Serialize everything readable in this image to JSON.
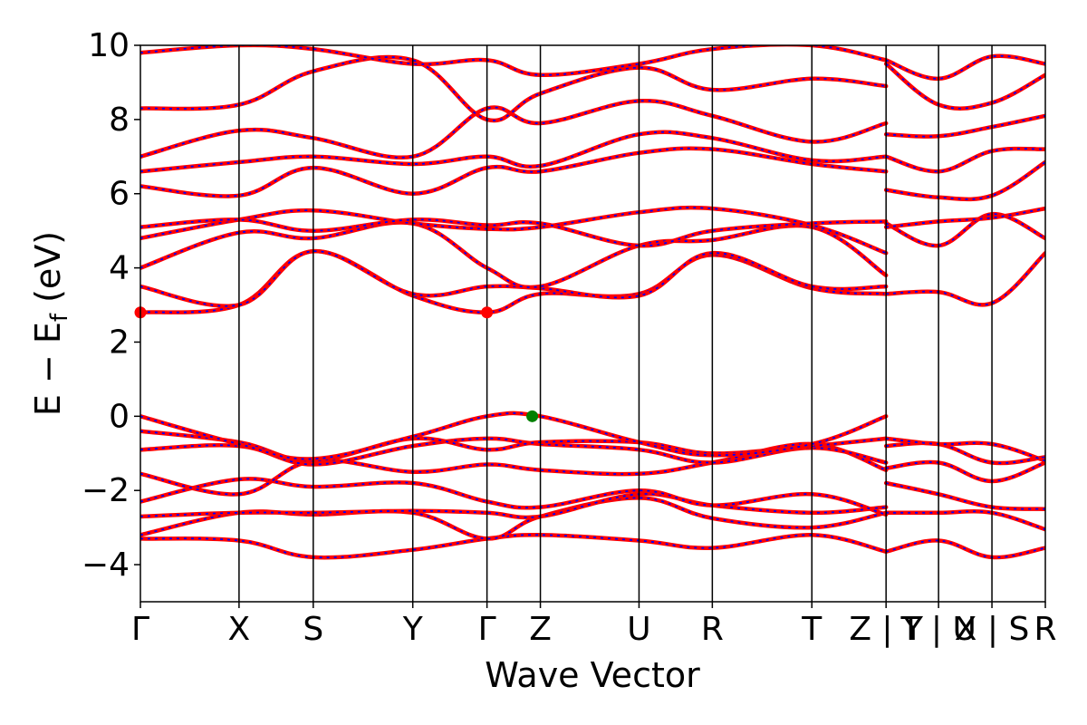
{
  "chart_data": {
    "type": "line",
    "xlabel": "Wave Vector",
    "ylabel_parts": {
      "main": "E  −  E",
      "sub": "f",
      "unit": " (eV)"
    },
    "ylim": [
      -5,
      10
    ],
    "yticks": [
      -4,
      -2,
      0,
      2,
      4,
      6,
      8,
      10
    ],
    "ytick_labels": [
      "−4",
      "−2",
      "0",
      "2",
      "4",
      "6",
      "8",
      "10"
    ],
    "k_range": [
      0,
      1
    ],
    "kpoints": [
      {
        "label": "Γ",
        "k": 0.0
      },
      {
        "label": "X",
        "k": 0.109
      },
      {
        "label": "S",
        "k": 0.191
      },
      {
        "label": "Y",
        "k": 0.301
      },
      {
        "label": "Γ",
        "k": 0.383
      },
      {
        "label": "Z",
        "k": 0.442
      },
      {
        "label": "U",
        "k": 0.551
      },
      {
        "label": "R",
        "k": 0.632
      },
      {
        "label": "T",
        "k": 0.742
      },
      {
        "label": "Z | Y",
        "k": 0.824
      },
      {
        "label": "T | U",
        "k": 0.882
      },
      {
        "label": "X | S",
        "k": 0.941
      },
      {
        "label": "R",
        "k": 1.0
      }
    ],
    "band_colors": {
      "line": "#ff0000",
      "dash": "#0000ff"
    },
    "special_points": [
      {
        "name": "CBM",
        "k": 0.0,
        "E": 2.8,
        "color": "#ff0000"
      },
      {
        "name": "CBM",
        "k": 0.383,
        "E": 2.8,
        "color": "#ff0000"
      },
      {
        "name": "VBM",
        "k": 0.433,
        "E": 0.0,
        "color": "#008000"
      }
    ],
    "bands": [
      {
        "k": [
          0,
          0.109,
          0.191,
          0.301,
          0.383,
          0.442,
          0.551,
          0.632,
          0.742,
          0.824
        ],
        "E": [
          -3.3,
          -3.35,
          -3.8,
          -3.6,
          -3.3,
          -3.2,
          -3.35,
          -3.55,
          -3.2,
          -3.65
        ]
      },
      {
        "k": [
          0,
          0.109,
          0.191,
          0.301,
          0.383,
          0.442,
          0.551,
          0.632,
          0.742,
          0.824
        ],
        "E": [
          -3.2,
          -2.6,
          -2.65,
          -2.6,
          -3.3,
          -2.7,
          -2.2,
          -2.75,
          -3.0,
          -2.6
        ]
      },
      {
        "k": [
          0,
          0.109,
          0.191,
          0.301,
          0.383,
          0.442,
          0.551,
          0.632,
          0.742,
          0.824
        ],
        "E": [
          -2.7,
          -2.6,
          -2.6,
          -2.55,
          -2.6,
          -2.7,
          -2.1,
          -2.4,
          -2.6,
          -2.45
        ]
      },
      {
        "k": [
          0,
          0.109,
          0.191,
          0.301,
          0.383,
          0.442,
          0.551,
          0.632,
          0.742,
          0.824
        ],
        "E": [
          -2.3,
          -1.7,
          -1.9,
          -1.8,
          -2.3,
          -2.45,
          -2.0,
          -2.4,
          -2.1,
          -2.65
        ]
      },
      {
        "k": [
          0,
          0.109,
          0.191,
          0.301,
          0.383,
          0.442,
          0.551,
          0.632,
          0.742,
          0.824
        ],
        "E": [
          -1.55,
          -2.1,
          -1.2,
          -1.5,
          -1.3,
          -1.45,
          -1.55,
          -1.25,
          -0.75,
          -1.45
        ]
      },
      {
        "k": [
          0,
          0.109,
          0.191,
          0.301,
          0.383,
          0.442,
          0.551,
          0.632,
          0.742,
          0.824
        ],
        "E": [
          -0.9,
          -0.8,
          -1.3,
          -0.8,
          -0.6,
          -0.75,
          -0.9,
          -1.25,
          -0.85,
          -1.25
        ]
      },
      {
        "k": [
          0,
          0.109,
          0.191,
          0.301,
          0.383,
          0.442,
          0.551,
          0.632,
          0.742,
          0.824
        ],
        "E": [
          -0.4,
          -0.7,
          -1.2,
          -0.6,
          -0.9,
          -0.7,
          -0.7,
          -1.0,
          -0.8,
          -0.6
        ]
      },
      {
        "k": [
          0,
          0.109,
          0.191,
          0.301,
          0.383,
          0.442,
          0.551,
          0.632,
          0.742,
          0.824
        ],
        "E": [
          0.0,
          -0.75,
          -1.15,
          -0.55,
          0.0,
          0.0,
          -0.7,
          -1.05,
          -0.75,
          0.0
        ]
      },
      {
        "k": [
          0,
          0.109,
          0.191,
          0.301,
          0.383,
          0.442,
          0.551,
          0.632,
          0.742,
          0.824
        ],
        "E": [
          2.8,
          3.0,
          4.45,
          3.25,
          2.8,
          3.3,
          3.3,
          4.35,
          3.45,
          3.3
        ]
      },
      {
        "k": [
          0,
          0.109,
          0.191,
          0.301,
          0.383,
          0.442,
          0.551,
          0.632,
          0.742,
          0.824
        ],
        "E": [
          3.5,
          3.0,
          4.45,
          3.3,
          3.5,
          3.45,
          3.25,
          4.4,
          3.5,
          3.5
        ]
      },
      {
        "k": [
          0,
          0.109,
          0.191,
          0.301,
          0.383,
          0.442,
          0.551,
          0.632,
          0.742,
          0.824
        ],
        "E": [
          4.0,
          4.95,
          4.8,
          5.2,
          4.0,
          3.5,
          4.6,
          4.75,
          5.1,
          3.8
        ]
      },
      {
        "k": [
          0,
          0.109,
          0.191,
          0.301,
          0.383,
          0.442,
          0.551,
          0.632,
          0.742,
          0.824
        ],
        "E": [
          4.8,
          5.3,
          5.55,
          5.2,
          5.05,
          5.1,
          5.5,
          5.6,
          5.15,
          4.4
        ]
      },
      {
        "k": [
          0,
          0.109,
          0.191,
          0.301,
          0.383,
          0.442,
          0.551,
          0.632,
          0.742,
          0.824
        ],
        "E": [
          5.1,
          5.3,
          5.0,
          5.3,
          5.15,
          5.2,
          4.6,
          5.0,
          5.2,
          5.25
        ]
      },
      {
        "k": [
          0,
          0.109,
          0.191,
          0.301,
          0.383,
          0.442,
          0.551,
          0.632,
          0.742,
          0.824
        ],
        "E": [
          6.2,
          5.95,
          6.7,
          6.0,
          6.7,
          6.6,
          7.1,
          7.2,
          6.8,
          6.6
        ]
      },
      {
        "k": [
          0,
          0.109,
          0.191,
          0.301,
          0.383,
          0.442,
          0.551,
          0.632,
          0.742,
          0.824
        ],
        "E": [
          6.6,
          6.85,
          7.0,
          6.8,
          7.0,
          6.75,
          7.6,
          7.5,
          6.9,
          7.0
        ]
      },
      {
        "k": [
          0,
          0.109,
          0.191,
          0.301,
          0.383,
          0.442,
          0.551,
          0.632,
          0.742,
          0.824
        ],
        "E": [
          7.0,
          7.7,
          7.5,
          7.0,
          8.3,
          7.9,
          8.5,
          8.1,
          7.4,
          7.9
        ]
      },
      {
        "k": [
          0,
          0.109,
          0.191,
          0.301,
          0.383,
          0.442,
          0.551,
          0.632,
          0.742,
          0.824
        ],
        "E": [
          8.3,
          8.4,
          9.3,
          9.6,
          8.0,
          8.7,
          9.4,
          8.8,
          9.1,
          8.9
        ]
      },
      {
        "k": [
          0,
          0.109,
          0.191,
          0.301,
          0.383,
          0.442,
          0.551,
          0.632,
          0.742,
          0.824
        ],
        "E": [
          9.8,
          10.0,
          9.9,
          9.5,
          9.6,
          9.2,
          9.5,
          9.9,
          10.0,
          9.6
        ]
      },
      {
        "k": [
          0.824,
          0.882,
          0.941,
          1.0
        ],
        "E": [
          -3.65,
          -3.35,
          -3.8,
          -3.55
        ]
      },
      {
        "k": [
          0.824,
          0.882,
          0.941,
          1.0
        ],
        "E": [
          -2.6,
          -2.6,
          -2.6,
          -3.05
        ]
      },
      {
        "k": [
          0.824,
          0.882,
          0.941,
          1.0
        ],
        "E": [
          -1.8,
          -2.1,
          -2.45,
          -2.5
        ]
      },
      {
        "k": [
          0.824,
          0.882,
          0.941,
          1.0
        ],
        "E": [
          -1.4,
          -1.25,
          -1.75,
          -1.25
        ]
      },
      {
        "k": [
          0.824,
          0.882,
          0.941,
          1.0
        ],
        "E": [
          -0.8,
          -0.75,
          -1.25,
          -1.1
        ]
      },
      {
        "k": [
          0.824,
          0.882,
          0.941,
          1.0
        ],
        "E": [
          -0.6,
          -0.75,
          -0.75,
          -1.2
        ]
      },
      {
        "k": [
          0.824,
          0.882,
          0.941,
          1.0
        ],
        "E": [
          3.3,
          3.35,
          3.05,
          4.4
        ]
      },
      {
        "k": [
          0.824,
          0.882,
          0.941,
          1.0
        ],
        "E": [
          5.2,
          4.6,
          5.45,
          4.8
        ]
      },
      {
        "k": [
          0.824,
          0.882,
          0.941,
          1.0
        ],
        "E": [
          5.1,
          5.25,
          5.35,
          5.6
        ]
      },
      {
        "k": [
          0.824,
          0.882,
          0.941,
          1.0
        ],
        "E": [
          6.1,
          5.9,
          5.95,
          6.85
        ]
      },
      {
        "k": [
          0.824,
          0.882,
          0.941,
          1.0
        ],
        "E": [
          7.0,
          6.6,
          7.15,
          7.2
        ]
      },
      {
        "k": [
          0.824,
          0.882,
          0.941,
          1.0
        ],
        "E": [
          7.6,
          7.55,
          7.8,
          8.1
        ]
      },
      {
        "k": [
          0.824,
          0.882,
          0.941,
          1.0
        ],
        "E": [
          9.5,
          8.4,
          8.45,
          9.2
        ]
      },
      {
        "k": [
          0.824,
          0.882,
          0.941,
          1.0
        ],
        "E": [
          9.6,
          9.1,
          9.7,
          9.5
        ]
      }
    ]
  }
}
